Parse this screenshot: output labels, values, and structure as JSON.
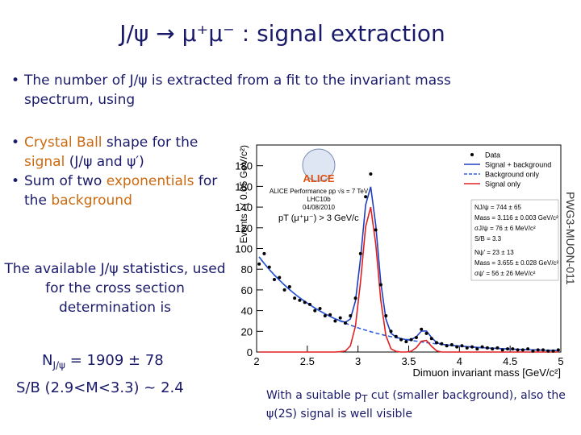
{
  "title": "J/ψ → μ⁺μ⁻ : signal extraction",
  "text_color": "#1a1a6a",
  "accent_color": "#cc6a10",
  "intro": "The number of J/ψ is extracted from a fit to the invariant mass spectrum, using",
  "methods": [
    [
      {
        "text": "Crystal Ball",
        "accent": true
      },
      {
        "text": " shape for the "
      },
      {
        "text": "signal",
        "accent": true
      },
      {
        "text": " (J/ψ and ψ′)"
      }
    ],
    [
      {
        "text": "Sum of two "
      },
      {
        "text": "exponentials",
        "accent": true
      },
      {
        "text": " for the "
      },
      {
        "text": "background",
        "accent": true
      }
    ]
  ],
  "statistics": {
    "text": "The available J/ψ statistics, used for the cross section determination is",
    "yield": {
      "symbol": "N",
      "subscript": "J/ψ",
      "value": " = 1909 ± 78"
    },
    "ratio": "S/B (2.9<M<3.3) ~ 2.4"
  },
  "note": [
    {
      "text": "With a suitable p"
    },
    {
      "text": "T",
      "subscript": true
    },
    {
      "text": " cut (smaller background), also the ψ(2S) signal is well visible"
    }
  ],
  "chart_data": {
    "type": "scatter",
    "xlabel": "Dimuon invariant mass [GeV/c²]",
    "ylabel": "Events / ( 0.05 GeV/c²)",
    "xlim": [
      2,
      5
    ],
    "ylim": [
      0,
      200
    ],
    "xticks": [
      2,
      2.5,
      3,
      3.5,
      4,
      4.5,
      5
    ],
    "yticks": [
      0,
      20,
      40,
      60,
      80,
      100,
      120,
      140,
      160,
      180
    ],
    "legend": "upper right",
    "x": [
      2.025,
      2.075,
      2.125,
      2.175,
      2.225,
      2.275,
      2.325,
      2.375,
      2.425,
      2.475,
      2.525,
      2.575,
      2.625,
      2.675,
      2.725,
      2.775,
      2.825,
      2.875,
      2.925,
      2.975,
      3.025,
      3.075,
      3.125,
      3.175,
      3.225,
      3.275,
      3.325,
      3.375,
      3.425,
      3.475,
      3.525,
      3.575,
      3.625,
      3.675,
      3.725,
      3.775,
      3.825,
      3.875,
      3.925,
      3.975,
      4.025,
      4.075,
      4.125,
      4.175,
      4.225,
      4.275,
      4.325,
      4.375,
      4.425,
      4.475,
      4.525,
      4.575,
      4.625,
      4.675,
      4.725,
      4.775,
      4.825,
      4.875,
      4.925,
      4.975
    ],
    "series": [
      {
        "name": "Data",
        "color": "#000000",
        "style": "points",
        "values": [
          85,
          95,
          82,
          70,
          72,
          60,
          63,
          52,
          50,
          48,
          46,
          40,
          42,
          35,
          36,
          30,
          33,
          28,
          35,
          52,
          95,
          150,
          172,
          118,
          65,
          35,
          20,
          15,
          12,
          10,
          12,
          14,
          22,
          18,
          13,
          9,
          8,
          6,
          7,
          5,
          6,
          4,
          5,
          3,
          5,
          4,
          3,
          4,
          2,
          3,
          3,
          2,
          2,
          3,
          1,
          2,
          2,
          1,
          1,
          2
        ]
      },
      {
        "name": "Signal + background",
        "color": "#1f3fbf",
        "style": "line",
        "dashed": false,
        "values": [
          91.8,
          85.6,
          79.8,
          74.4,
          69.4,
          64.7,
          60.3,
          56.2,
          52.4,
          48.9,
          45.6,
          42.5,
          39.6,
          36.9,
          34.4,
          32.1,
          30.2,
          28.8,
          31.9,
          49.3,
          90.6,
          142.1,
          159.7,
          122.3,
          67.1,
          31.9,
          18.1,
          14.5,
          12.9,
          12.0,
          12.0,
          14.8,
          20.2,
          20.3,
          14.0,
          9.1,
          7.4,
          6.9,
          6.4,
          6.0,
          5.6,
          5.2,
          4.8,
          4.5,
          4.2,
          3.9,
          3.7,
          3.4,
          3.2,
          3.0,
          2.8,
          2.6,
          2.4,
          2.2,
          2.1,
          2.0,
          1.8,
          1.7,
          1.6,
          1.5
        ]
      },
      {
        "name": "Background only",
        "color": "#2f5fdf",
        "style": "line",
        "dashed": true,
        "values": [
          91.8,
          85.6,
          79.8,
          74.4,
          69.4,
          64.7,
          60.3,
          56.2,
          52.4,
          48.9,
          45.6,
          42.5,
          39.6,
          36.9,
          34.4,
          32.1,
          29.9,
          27.9,
          26.0,
          24.3,
          22.6,
          21.1,
          19.7,
          18.3,
          17.1,
          15.9,
          14.9,
          13.9,
          12.9,
          12.0,
          11.2,
          10.5,
          9.8,
          9.1,
          8.5,
          7.9,
          7.4,
          6.9,
          6.4,
          6.0,
          5.6,
          5.2,
          4.8,
          4.5,
          4.2,
          3.9,
          3.7,
          3.4,
          3.2,
          3.0,
          2.8,
          2.6,
          2.4,
          2.2,
          2.1,
          2.0,
          1.8,
          1.7,
          1.6,
          1.5
        ]
      },
      {
        "name": "Signal only",
        "color": "#e02020",
        "style": "line",
        "dashed": false,
        "values": [
          0,
          0,
          0,
          0,
          0,
          0,
          0,
          0,
          0,
          0,
          0,
          0,
          0,
          0,
          0,
          0,
          0.3,
          0.9,
          5.9,
          25,
          68,
          121,
          140,
          104,
          50,
          16,
          3.2,
          0.6,
          0,
          0,
          0.8,
          4.3,
          10.4,
          11.2,
          5.5,
          1.2,
          0,
          0,
          0,
          0,
          0,
          0,
          0,
          0,
          0,
          0,
          0,
          0,
          0,
          0,
          0,
          0,
          0,
          0,
          0,
          0,
          0,
          0,
          0,
          0
        ]
      }
    ],
    "annotations": {
      "experiment": "ALICE",
      "performance": "ALICE Performance pp √s = 7 TeV",
      "period": "LHC10b",
      "date": "04/08/2010",
      "cut": "pT (μ⁺μ⁻) > 3 GeV/c"
    },
    "fit_results": [
      "NJ/ψ = 744 ± 65",
      "Mass = 3.116 ± 0.003 GeV/c²",
      "σJ/ψ = 76 ± 6 MeV/c²",
      "S/B = 3.3",
      "Nψ′ = 23 ± 13",
      "Mass = 3.655 ± 0.028 GeV/c²",
      "σψ′ = 56 ± 26 MeV/c²"
    ],
    "label": "PWG3-MUON-011"
  }
}
